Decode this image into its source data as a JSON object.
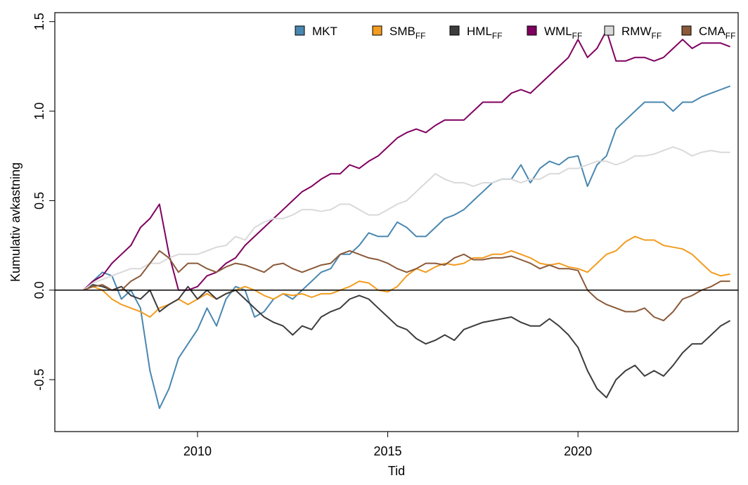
{
  "chart_data": {
    "type": "line",
    "x_label": "Tid",
    "y_label": "Kumulativ avkastning",
    "xlim": [
      2006.25,
      2024.21
    ],
    "ylim": [
      -0.79,
      1.55
    ],
    "xticks": [
      2010,
      2015,
      2020
    ],
    "yticks": [
      -0.5,
      {
        "value": 0,
        "label": "0.0"
      },
      0.5,
      {
        "value": 1,
        "label": "1.0"
      },
      1.5
    ],
    "hline": 0,
    "grid": false,
    "legend": "top",
    "x": [
      2007,
      2007.25,
      2007.5,
      2007.75,
      2008,
      2008.25,
      2008.5,
      2008.75,
      2009,
      2009.25,
      2009.5,
      2009.75,
      2010,
      2010.25,
      2010.5,
      2010.75,
      2011,
      2011.25,
      2011.5,
      2011.75,
      2012,
      2012.25,
      2012.5,
      2012.75,
      2013,
      2013.25,
      2013.5,
      2013.75,
      2014,
      2014.25,
      2014.5,
      2014.75,
      2015,
      2015.25,
      2015.5,
      2015.75,
      2016,
      2016.25,
      2016.5,
      2016.75,
      2017,
      2017.25,
      2017.5,
      2017.75,
      2018,
      2018.25,
      2018.5,
      2018.75,
      2019,
      2019.25,
      2019.5,
      2019.75,
      2020,
      2020.25,
      2020.5,
      2020.75,
      2021,
      2021.25,
      2021.5,
      2021.75,
      2022,
      2022.25,
      2022.5,
      2022.75,
      2023,
      2023.25,
      2023.5,
      2023.75,
      2024
    ],
    "series": [
      {
        "name": "MKT",
        "color": "#4a87b0",
        "values": [
          0,
          0.05,
          0.1,
          0.08,
          -0.05,
          0,
          -0.1,
          -0.45,
          -0.66,
          -0.55,
          -0.38,
          -0.3,
          -0.22,
          -0.1,
          -0.2,
          -0.05,
          0.02,
          0,
          -0.15,
          -0.12,
          -0.05,
          -0.02,
          -0.05,
          0,
          0.05,
          0.1,
          0.12,
          0.2,
          0.2,
          0.25,
          0.32,
          0.3,
          0.3,
          0.38,
          0.35,
          0.3,
          0.3,
          0.35,
          0.4,
          0.42,
          0.45,
          0.5,
          0.55,
          0.6,
          0.62,
          0.62,
          0.7,
          0.6,
          0.68,
          0.72,
          0.7,
          0.74,
          0.75,
          0.58,
          0.7,
          0.75,
          0.9,
          0.95,
          1,
          1.05,
          1.05,
          1.05,
          1,
          1.05,
          1.05,
          1.08,
          1.1,
          1.12,
          1.14
        ]
      },
      {
        "name": "SMB",
        "subscript": "FF",
        "color": "#f39c1f",
        "values": [
          0,
          0.02,
          0,
          -0.05,
          -0.08,
          -0.1,
          -0.12,
          -0.15,
          -0.1,
          -0.08,
          -0.05,
          -0.08,
          -0.05,
          -0.02,
          -0.05,
          -0.02,
          0,
          0.02,
          0,
          -0.03,
          -0.05,
          -0.02,
          -0.03,
          -0.02,
          -0.04,
          -0.02,
          -0.02,
          0,
          0.02,
          0.05,
          0.04,
          0,
          -0.01,
          0.02,
          0.08,
          0.12,
          0.1,
          0.13,
          0.15,
          0.14,
          0.15,
          0.18,
          0.18,
          0.2,
          0.2,
          0.22,
          0.2,
          0.18,
          0.15,
          0.14,
          0.15,
          0.13,
          0.12,
          0.1,
          0.15,
          0.2,
          0.22,
          0.27,
          0.3,
          0.28,
          0.28,
          0.25,
          0.24,
          0.23,
          0.2,
          0.15,
          0.1,
          0.08,
          0.09
        ]
      },
      {
        "name": "HML",
        "subscript": "FF",
        "color": "#3c3c3c",
        "values": [
          0,
          0.03,
          0.02,
          0,
          0.02,
          -0.03,
          -0.05,
          0,
          -0.12,
          -0.08,
          -0.05,
          0.02,
          -0.05,
          0,
          -0.05,
          -0.02,
          0,
          -0.05,
          -0.1,
          -0.15,
          -0.18,
          -0.2,
          -0.25,
          -0.2,
          -0.22,
          -0.15,
          -0.12,
          -0.1,
          -0.05,
          -0.03,
          -0.05,
          -0.1,
          -0.15,
          -0.2,
          -0.22,
          -0.27,
          -0.3,
          -0.28,
          -0.25,
          -0.28,
          -0.22,
          -0.2,
          -0.18,
          -0.17,
          -0.16,
          -0.15,
          -0.18,
          -0.2,
          -0.2,
          -0.16,
          -0.2,
          -0.25,
          -0.32,
          -0.45,
          -0.55,
          -0.6,
          -0.5,
          -0.45,
          -0.42,
          -0.48,
          -0.45,
          -0.48,
          -0.42,
          -0.35,
          -0.3,
          -0.3,
          -0.25,
          -0.2,
          -0.17
        ]
      },
      {
        "name": "WML",
        "subscript": "FF",
        "color": "#800060",
        "values": [
          0,
          0.05,
          0.08,
          0.15,
          0.2,
          0.25,
          0.35,
          0.4,
          0.48,
          0.2,
          0,
          0,
          0.02,
          0.08,
          0.1,
          0.15,
          0.18,
          0.25,
          0.3,
          0.35,
          0.4,
          0.45,
          0.5,
          0.55,
          0.58,
          0.62,
          0.65,
          0.65,
          0.7,
          0.68,
          0.72,
          0.75,
          0.8,
          0.85,
          0.88,
          0.9,
          0.88,
          0.92,
          0.95,
          0.95,
          0.95,
          1,
          1.05,
          1.05,
          1.05,
          1.1,
          1.12,
          1.1,
          1.15,
          1.2,
          1.25,
          1.3,
          1.4,
          1.3,
          1.35,
          1.45,
          1.28,
          1.28,
          1.3,
          1.3,
          1.28,
          1.3,
          1.35,
          1.4,
          1.35,
          1.38,
          1.38,
          1.38,
          1.36
        ]
      },
      {
        "name": "RMW",
        "subscript": "FF",
        "color": "#d9d9d9",
        "values": [
          0,
          0.04,
          0.06,
          0.08,
          0.1,
          0.12,
          0.12,
          0.15,
          0.15,
          0.18,
          0.2,
          0.2,
          0.2,
          0.22,
          0.24,
          0.25,
          0.3,
          0.28,
          0.35,
          0.38,
          0.4,
          0.4,
          0.42,
          0.45,
          0.45,
          0.44,
          0.45,
          0.48,
          0.48,
          0.45,
          0.42,
          0.42,
          0.45,
          0.48,
          0.5,
          0.55,
          0.6,
          0.65,
          0.62,
          0.6,
          0.6,
          0.58,
          0.6,
          0.6,
          0.62,
          0.62,
          0.6,
          0.62,
          0.62,
          0.65,
          0.65,
          0.68,
          0.68,
          0.7,
          0.72,
          0.72,
          0.7,
          0.72,
          0.75,
          0.75,
          0.76,
          0.78,
          0.8,
          0.78,
          0.75,
          0.77,
          0.78,
          0.77,
          0.77
        ]
      },
      {
        "name": "CMA",
        "subscript": "FF",
        "color": "#8a5a3a",
        "values": [
          0,
          0.02,
          0.03,
          0,
          0,
          0.05,
          0.08,
          0.15,
          0.22,
          0.18,
          0.1,
          0.15,
          0.15,
          0.12,
          0.1,
          0.13,
          0.15,
          0.14,
          0.12,
          0.1,
          0.14,
          0.15,
          0.12,
          0.1,
          0.12,
          0.14,
          0.15,
          0.2,
          0.22,
          0.2,
          0.18,
          0.17,
          0.15,
          0.12,
          0.1,
          0.12,
          0.15,
          0.15,
          0.14,
          0.18,
          0.2,
          0.17,
          0.17,
          0.18,
          0.18,
          0.19,
          0.17,
          0.15,
          0.12,
          0.14,
          0.12,
          0.12,
          0.11,
          0,
          -0.05,
          -0.08,
          -0.1,
          -0.12,
          -0.12,
          -0.1,
          -0.15,
          -0.17,
          -0.12,
          -0.05,
          -0.03,
          0,
          0.02,
          0.05,
          0.05
        ]
      }
    ]
  }
}
